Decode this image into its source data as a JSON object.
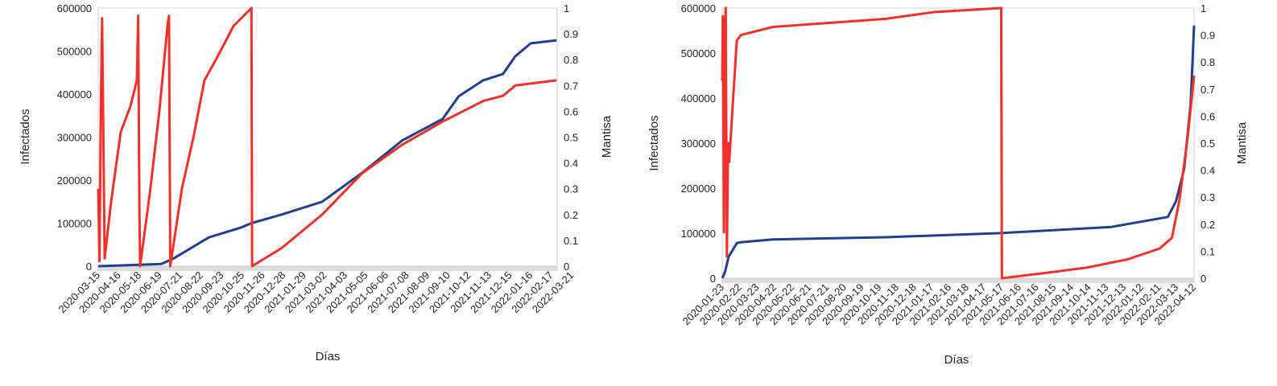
{
  "chart_data": [
    {
      "type": "line",
      "xlabel": "Días",
      "ylabel": "Infectados",
      "y2label": "Mantisa",
      "ylim": [
        0,
        600000
      ],
      "y2lim": [
        0,
        1
      ],
      "yticks": [
        "0",
        "100000",
        "200000",
        "300000",
        "400000",
        "500000",
        "600000"
      ],
      "y2ticks": [
        "0",
        "0.1",
        "0.2",
        "0.3",
        "0.4",
        "0.5",
        "0.6",
        "0.7",
        "0.8",
        "0.9",
        "1"
      ],
      "x_unit": "days since 2020-03-15",
      "xlim": [
        0,
        713
      ],
      "xticks": [
        "2020-03-15",
        "2020-04-16",
        "2020-05-18",
        "2020-06-19",
        "2020-07-21",
        "2020-08-22",
        "2020-09-23",
        "2020-10-25",
        "2020-11-26",
        "2020-12-28",
        "2021-01-29",
        "2021-03-02",
        "2021-04-03",
        "2021-05-05",
        "2021-06-06",
        "2021-07-08",
        "2021-08-09",
        "2021-09-10",
        "2021-10-12",
        "2021-11-13",
        "2021-12-15",
        "2022-01-16",
        "2022-02-17",
        "2022-03-21"
      ],
      "xtick_step_days": 32,
      "series": [
        {
          "name": "Infectados",
          "axis": "left",
          "color": "#203f8c",
          "points": [
            [
              0,
              0
            ],
            [
              98,
              5000
            ],
            [
              116,
              17000
            ],
            [
              172,
              67000
            ],
            [
              222,
              90000
            ],
            [
              238,
              100000
            ],
            [
              285,
              120000
            ],
            [
              348,
              150000
            ],
            [
              410,
              217000
            ],
            [
              472,
              292000
            ],
            [
              535,
              342000
            ],
            [
              560,
              395000
            ],
            [
              598,
              432000
            ],
            [
              629,
              447000
            ],
            [
              648,
              488000
            ],
            [
              672,
              518000
            ],
            [
              712,
              525000
            ]
          ]
        },
        {
          "name": "Mantisa",
          "axis": "right",
          "color": "#f0302a",
          "points": [
            [
              0,
              0.3
            ],
            [
              2,
              0.02
            ],
            [
              4,
              0.6
            ],
            [
              6,
              0.96
            ],
            [
              8,
              0.5
            ],
            [
              10,
              0.03
            ],
            [
              20,
              0.25
            ],
            [
              35,
              0.52
            ],
            [
              50,
              0.62
            ],
            [
              60,
              0.72
            ],
            [
              62,
              0.97
            ],
            [
              64,
              0.2
            ],
            [
              65,
              0
            ],
            [
              80,
              0.28
            ],
            [
              95,
              0.6
            ],
            [
              108,
              0.94
            ],
            [
              110,
              0.97
            ],
            [
              112,
              0
            ],
            [
              130,
              0.3
            ],
            [
              148,
              0.5
            ],
            [
              165,
              0.72
            ],
            [
              185,
              0.81
            ],
            [
              210,
              0.93
            ],
            [
              238,
              1.0
            ],
            [
              239,
              0
            ],
            [
              285,
              0.07
            ],
            [
              348,
              0.2
            ],
            [
              410,
              0.36
            ],
            [
              472,
              0.47
            ],
            [
              535,
              0.56
            ],
            [
              598,
              0.64
            ],
            [
              629,
              0.66
            ],
            [
              648,
              0.7
            ],
            [
              712,
              0.72
            ]
          ]
        }
      ]
    },
    {
      "type": "line",
      "xlabel": "Días",
      "ylabel": "Infectados",
      "y2label": "Mantisa",
      "ylim": [
        0,
        600000
      ],
      "y2lim": [
        0,
        1
      ],
      "yticks": [
        "0",
        "100000",
        "200000",
        "300000",
        "400000",
        "500000",
        "600000"
      ],
      "y2ticks": [
        "0",
        "0.1",
        "0.2",
        "0.3",
        "0.4",
        "0.5",
        "0.6",
        "0.7",
        "0.8",
        "0.9",
        "1"
      ],
      "x_unit": "days since 2020-01-23",
      "xlim": [
        0,
        810
      ],
      "xticks": [
        "2020-01-23",
        "2020-02-22",
        "2020-03-23",
        "2020-04-22",
        "2020-05-22",
        "2020-06-21",
        "2020-07-21",
        "2020-08-20",
        "2020-09-19",
        "2020-10-19",
        "2020-11-18",
        "2020-12-18",
        "2021-01-17",
        "2021-02-16",
        "2021-03-18",
        "2021-04-17",
        "2021-05-17",
        "2021-06-16",
        "2021-07-16",
        "2021-08-15",
        "2021-09-14",
        "2021-10-14",
        "2021-11-13",
        "2021-12-13",
        "2022-01-12",
        "2022-02-11",
        "2022-03-13",
        "2022-04-12"
      ],
      "xtick_step_days": 30,
      "series": [
        {
          "name": "Infectados",
          "axis": "left",
          "color": "#203f8c",
          "points": [
            [
              0,
              0
            ],
            [
              5,
              15000
            ],
            [
              11,
              48000
            ],
            [
              25,
              78000
            ],
            [
              32,
              80000
            ],
            [
              87,
              86000
            ],
            [
              281,
              91000
            ],
            [
              474,
              100000
            ],
            [
              668,
              114000
            ],
            [
              765,
              136000
            ],
            [
              779,
              171000
            ],
            [
              793,
              243000
            ],
            [
              804,
              386000
            ],
            [
              810,
              561000
            ]
          ]
        },
        {
          "name": "Mantisa",
          "axis": "right",
          "color": "#f0302a",
          "points": [
            [
              0,
              0.73
            ],
            [
              1,
              0.97
            ],
            [
              3,
              0.17
            ],
            [
              4,
              0.9
            ],
            [
              6,
              1.0
            ],
            [
              8,
              0.08
            ],
            [
              10,
              0.5
            ],
            [
              12,
              0.43
            ],
            [
              18,
              0.64
            ],
            [
              25,
              0.88
            ],
            [
              32,
              0.9
            ],
            [
              87,
              0.93
            ],
            [
              281,
              0.96
            ],
            [
              364,
              0.985
            ],
            [
              479,
              1.0
            ],
            [
              480,
              0
            ],
            [
              557,
              0.02
            ],
            [
              627,
              0.04
            ],
            [
              696,
              0.07
            ],
            [
              751,
              0.11
            ],
            [
              772,
              0.15
            ],
            [
              785,
              0.29
            ],
            [
              799,
              0.52
            ],
            [
              810,
              0.75
            ]
          ]
        }
      ]
    }
  ]
}
